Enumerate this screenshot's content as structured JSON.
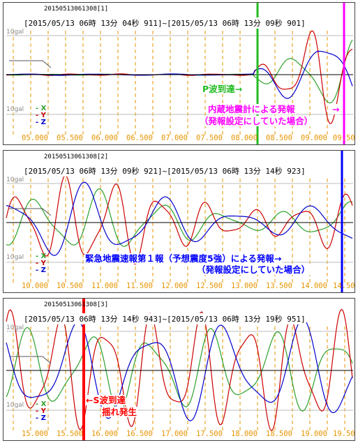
{
  "colors": {
    "x": "#2ca02c",
    "y": "#cc0000",
    "z": "#0000cc",
    "grid": "#e69500",
    "p_wave": "#22bb22",
    "internal_alarm": "#ff00ff",
    "eew": "#0000ff",
    "s_wave": "#ff0000"
  },
  "panels": [
    {
      "id": "20150513061308[1]",
      "range": "[2015/05/13 06時 13分 04秒 911]~[2015/05/13 06時 13分 09秒 901]",
      "gal_top": "10gal",
      "gal_bottom": "10gal",
      "ticks": [
        "05.000",
        "05.500",
        "06.000",
        "06.500",
        "07.000",
        "07.500",
        "08.000",
        "08.500",
        "09.000",
        "09.50"
      ]
    },
    {
      "id": "20150513061308[2]",
      "range": "[2015/05/13 06時 13分 09秒 921]~[2015/05/13 06時 13分 14秒 923]",
      "gal_top": "10gal",
      "gal_bottom": "10gal",
      "ticks": [
        "10.000",
        "10.500",
        "11.000",
        "11.500",
        "12.000",
        "12.500",
        "13.000",
        "13.500",
        "14.000",
        "14.50"
      ]
    },
    {
      "id": "20150513061308[3]",
      "range": "[2015/05/13 06時 13分 14秒 943]~[2015/05/13 06時 13分 19秒 951]",
      "gal_top": "10gal",
      "gal_bottom": "10gal",
      "ticks": [
        "15.000",
        "15.500",
        "16.000",
        "16.500",
        "17.000",
        "17.500",
        "18.000",
        "18.500",
        "19.000",
        "19.50"
      ]
    }
  ],
  "legend": [
    "X",
    "Y",
    "Z"
  ],
  "annotations": {
    "p_wave": "P波到達→",
    "internal_line1": "内蔵地震計による発報",
    "internal_arrow": "→",
    "internal_line2": "（発報設定にしていた場合）",
    "eew_line1": "緊急地震速報第１報（予想震度5強）による発報→",
    "eew_line2": "（発報設定にしていた場合）",
    "s_wave_line1": "←S波到達",
    "s_wave_line2": "揺れ発生"
  },
  "chart_data": {
    "type": "line",
    "title": "",
    "xlabel": "",
    "ylabel": "",
    "series": [
      {
        "name": "X",
        "values": []
      },
      {
        "name": "Y",
        "values": []
      },
      {
        "name": "Z",
        "values": []
      }
    ],
    "panels": [
      {
        "xlim": [
          4.911,
          9.901
        ],
        "ylim": [
          -10,
          10
        ],
        "markers": [
          {
            "x": 8.12,
            "label": "P波到達"
          },
          {
            "x": 9.75,
            "label": "内蔵地震計による発報"
          }
        ]
      },
      {
        "xlim": [
          9.921,
          14.923
        ],
        "ylim": [
          -10,
          10
        ],
        "markers": [
          {
            "x": 14.7,
            "label": "緊急地震速報第１報（予想震度5強）による発報"
          }
        ]
      },
      {
        "xlim": [
          14.943,
          19.951
        ],
        "ylim": [
          -10,
          10
        ],
        "markers": [
          {
            "x": 16.04,
            "label": "S波到達"
          }
        ]
      }
    ]
  }
}
